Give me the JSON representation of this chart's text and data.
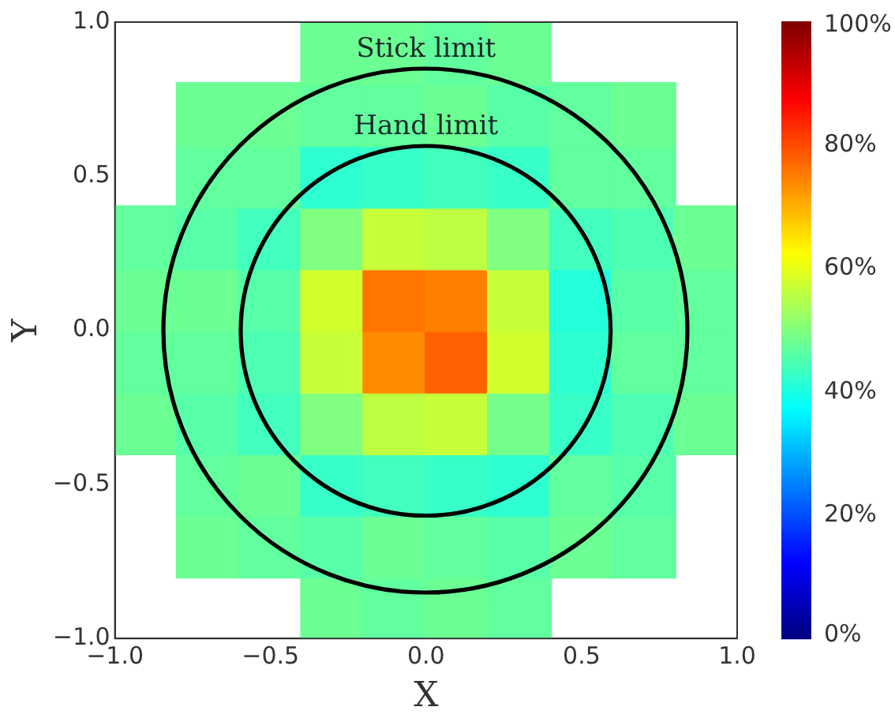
{
  "chart_data": {
    "type": "scatter",
    "xlabel": "X",
    "ylabel": "Y",
    "xlim": [
      -1,
      1
    ],
    "ylim": [
      -1,
      1
    ],
    "xticks": [
      {
        "value": -1,
        "label": "−1.0"
      },
      {
        "value": -0.5,
        "label": "−0.5"
      },
      {
        "value": 0,
        "label": "0.0"
      },
      {
        "value": 0.5,
        "label": "0.5"
      },
      {
        "value": 1,
        "label": "1.0"
      }
    ],
    "yticks": [
      {
        "value": -1,
        "label": "−1.0"
      },
      {
        "value": -0.5,
        "label": "−0.5"
      },
      {
        "value": 0,
        "label": "0.0"
      },
      {
        "value": 0.5,
        "label": "0.5"
      },
      {
        "value": 1,
        "label": "1.0"
      }
    ],
    "clim": [
      0,
      100
    ],
    "cticks": [
      {
        "value": 0,
        "label": "0%"
      },
      {
        "value": 20,
        "label": "20%"
      },
      {
        "value": 40,
        "label": "40%"
      },
      {
        "value": 60,
        "label": "60%"
      },
      {
        "value": 80,
        "label": "80%"
      },
      {
        "value": 100,
        "label": "100%"
      }
    ],
    "grid": false,
    "legend": false,
    "marker": "square",
    "annotations": [
      {
        "text": "Stick limit",
        "x": 0,
        "y": 0.85
      },
      {
        "text": "Hand limit",
        "x": 0,
        "y": 0.6
      }
    ],
    "series": [
      {
        "type": "scatter",
        "x": [
          -0.9,
          -0.9,
          -0.9,
          -0.9,
          -0.7,
          -0.7,
          -0.7,
          -0.7,
          -0.7,
          -0.7,
          -0.7,
          -0.7,
          -0.5,
          -0.5,
          -0.5,
          -0.5,
          -0.5,
          -0.5,
          -0.5,
          -0.5,
          -0.3,
          -0.3,
          -0.3,
          -0.3,
          -0.3,
          -0.3,
          -0.3,
          -0.3,
          -0.3,
          -0.3,
          -0.1,
          -0.1,
          -0.1,
          -0.1,
          -0.1,
          -0.1,
          -0.1,
          -0.1,
          -0.1,
          -0.1,
          0.1,
          0.1,
          0.1,
          0.1,
          0.1,
          0.1,
          0.1,
          0.1,
          0.1,
          0.1,
          0.3,
          0.3,
          0.3,
          0.3,
          0.3,
          0.3,
          0.3,
          0.3,
          0.3,
          0.3,
          0.5,
          0.5,
          0.5,
          0.5,
          0.5,
          0.5,
          0.5,
          0.5,
          0.7,
          0.7,
          0.7,
          0.7,
          0.7,
          0.7,
          0.7,
          0.7,
          0.9,
          0.9,
          0.9,
          0.9
        ],
        "values": [
          -0.3,
          -0.1,
          0.1,
          0.3,
          -0.7,
          -0.5,
          -0.3,
          -0.1,
          0.1,
          0.3,
          0.5,
          0.7,
          -0.7,
          -0.5,
          -0.3,
          -0.1,
          0.1,
          0.3,
          0.5,
          0.7,
          -0.9,
          -0.7,
          -0.5,
          -0.3,
          -0.1,
          0.1,
          0.3,
          0.5,
          0.7,
          0.9,
          -0.9,
          -0.7,
          -0.5,
          -0.3,
          -0.1,
          0.1,
          0.3,
          0.5,
          0.7,
          0.9,
          -0.9,
          -0.7,
          -0.5,
          -0.3,
          -0.1,
          0.1,
          0.3,
          0.5,
          0.7,
          0.9,
          -0.9,
          -0.7,
          -0.5,
          -0.3,
          -0.1,
          0.1,
          0.3,
          0.5,
          0.7,
          0.9,
          -0.7,
          -0.5,
          -0.3,
          -0.1,
          0.1,
          0.3,
          0.5,
          0.7,
          -0.7,
          -0.5,
          -0.3,
          -0.1,
          0.1,
          0.3,
          0.5,
          0.7,
          -0.3,
          -0.1,
          0.1,
          0.3
        ],
        "cvalues": [
          48,
          47,
          48,
          47,
          48,
          47,
          46,
          47,
          48,
          46,
          47,
          48,
          47,
          48,
          44,
          45,
          46,
          44,
          47,
          48,
          48,
          46,
          43,
          50,
          57,
          58,
          50,
          42,
          47,
          48,
          47,
          48,
          44,
          56,
          74,
          76,
          57,
          43,
          47,
          48,
          48,
          47,
          43,
          57,
          78,
          75,
          56,
          44,
          48,
          47,
          47,
          46,
          42,
          49,
          58,
          57,
          50,
          43,
          46,
          48,
          48,
          47,
          43,
          42,
          41,
          44,
          47,
          47,
          47,
          46,
          45,
          47,
          46,
          45,
          47,
          48,
          48,
          47,
          47,
          48
        ],
        "colors": [
          "#6bff94",
          "#61ff9e",
          "#6bff94",
          "#61ff9e",
          "#6bff94",
          "#61ff9e",
          "#57ffa8",
          "#61ff9e",
          "#6bff94",
          "#57ffa8",
          "#61ff9e",
          "#6bff94",
          "#61ff9e",
          "#6bff94",
          "#42ffbd",
          "#4dffb3",
          "#57ffa8",
          "#42ffbd",
          "#61ff9e",
          "#6bff94",
          "#6bff94",
          "#57ffa8",
          "#38ffc7",
          "#80ff80",
          "#c7ff38",
          "#d1ff2e",
          "#80ff80",
          "#2effd1",
          "#61ff9e",
          "#6bff94",
          "#61ff9e",
          "#6bff94",
          "#42ffbd",
          "#bdff42",
          "#ff8a00",
          "#ff7500",
          "#c7ff38",
          "#38ffc7",
          "#61ff9e",
          "#6bff94",
          "#6bff94",
          "#61ff9e",
          "#38ffc7",
          "#c7ff38",
          "#ff6100",
          "#ff8000",
          "#bdff42",
          "#42ffbd",
          "#6bff94",
          "#61ff9e",
          "#61ff9e",
          "#57ffa8",
          "#2effd1",
          "#75ff8a",
          "#d1ff2e",
          "#c7ff38",
          "#80ff80",
          "#38ffc7",
          "#57ffa8",
          "#6bff94",
          "#6bff94",
          "#61ff9e",
          "#38ffc7",
          "#2effd1",
          "#24ffdb",
          "#42ffbd",
          "#61ff9e",
          "#61ff9e",
          "#61ff9e",
          "#57ffa8",
          "#4dffb3",
          "#61ff9e",
          "#57ffa8",
          "#4dffb3",
          "#61ff9e",
          "#6bff94",
          "#6bff94",
          "#61ff9e",
          "#61ff9e",
          "#6bff94"
        ]
      }
    ]
  }
}
